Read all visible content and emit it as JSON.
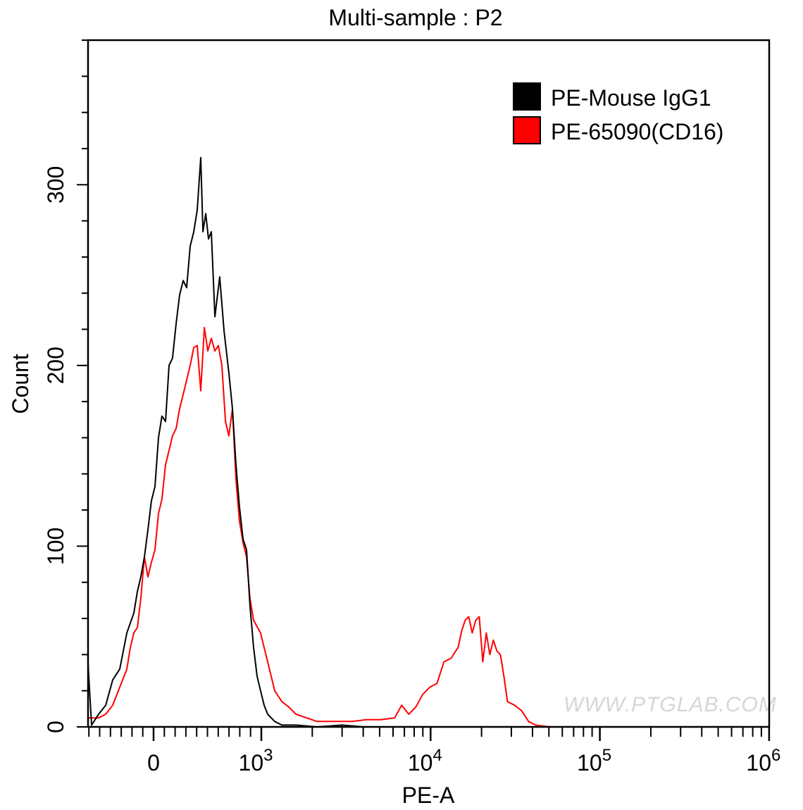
{
  "chart_data": {
    "type": "line",
    "title": "Multi-sample : P2",
    "xlabel": "PE-A",
    "ylabel": "Count",
    "xscale": "biexponential",
    "xlim": [
      -608,
      1000000
    ],
    "ylim": [
      0,
      380
    ],
    "x_ticks": [
      {
        "value": 0,
        "label": "0",
        "sup": ""
      },
      {
        "value": 1000,
        "label": "10",
        "sup": "3"
      },
      {
        "value": 10000,
        "label": "10",
        "sup": "4"
      },
      {
        "value": 100000,
        "label": "10",
        "sup": "5"
      },
      {
        "value": 1000000,
        "label": "10",
        "sup": "6"
      }
    ],
    "y_ticks": [
      {
        "value": 0,
        "label": "0"
      },
      {
        "value": 100,
        "label": "100"
      },
      {
        "value": 200,
        "label": "200"
      },
      {
        "value": 300,
        "label": "300"
      }
    ],
    "legend_position": "top-right",
    "watermark": "WWW.PTGLAB.COM",
    "series": [
      {
        "name": "PE-Mouse IgG1",
        "color": "#000000",
        "x": [
          -608,
          -575,
          -510,
          -444,
          -379,
          -314,
          -248,
          -183,
          -150,
          -118,
          -85,
          -52,
          -20,
          13,
          46,
          78,
          111,
          144,
          176,
          209,
          242,
          275,
          307,
          340,
          373,
          405,
          438,
          458,
          484,
          510,
          536,
          569,
          614,
          654,
          699,
          732,
          765,
          797,
          830,
          863,
          895,
          928,
          961,
          993,
          1039,
          1090,
          1200,
          1321,
          1600,
          2133,
          3000,
          4000
        ],
        "y": [
          35,
          1,
          7,
          12,
          26,
          32,
          52,
          63,
          75,
          83,
          94,
          109,
          125,
          133,
          160,
          172,
          169,
          200,
          204,
          223,
          239,
          247,
          243,
          266,
          274,
          286,
          315,
          274,
          284,
          270,
          274,
          227,
          249,
          219,
          196,
          176,
          145,
          122,
          104,
          98,
          67,
          44,
          28,
          20,
          12,
          7,
          3,
          1,
          1,
          0,
          1,
          0
        ]
      },
      {
        "name": "PE-65090(CD16)",
        "color": "#ff0000",
        "x": [
          -608,
          -510,
          -444,
          -379,
          -314,
          -248,
          -216,
          -183,
          -150,
          -118,
          -85,
          -52,
          -20,
          13,
          46,
          78,
          111,
          144,
          176,
          209,
          242,
          275,
          307,
          340,
          373,
          405,
          438,
          471,
          503,
          536,
          569,
          601,
          634,
          667,
          699,
          732,
          765,
          797,
          830,
          863,
          895,
          928,
          993,
          1090,
          1200,
          1321,
          1454,
          1600,
          2133,
          2844,
          3448,
          4178,
          5060,
          6133,
          6750,
          7430,
          8175,
          8995,
          9905,
          10900,
          12000,
          13210,
          14540,
          15250,
          16000,
          16790,
          17620,
          18480,
          19390,
          20340,
          21340,
          22390,
          23490,
          24640,
          25850,
          27120,
          28450,
          31310,
          34460,
          37930,
          41750,
          50580
        ],
        "y": [
          5,
          5,
          7,
          12,
          22,
          32,
          44,
          52,
          55,
          71,
          94,
          83,
          91,
          98,
          118,
          126,
          145,
          153,
          161,
          165,
          176,
          184,
          192,
          200,
          210,
          211,
          186,
          221,
          208,
          215,
          208,
          211,
          200,
          169,
          161,
          176,
          137,
          114,
          102,
          94,
          71,
          59,
          52,
          36,
          20,
          14,
          11,
          7,
          3,
          3,
          3,
          4,
          4,
          5,
          12,
          7,
          11,
          18,
          22,
          24,
          36,
          38,
          44,
          53,
          59,
          61,
          52,
          59,
          61,
          36,
          52,
          40,
          48,
          42,
          40,
          28,
          14,
          12,
          9,
          3,
          1,
          0
        ]
      }
    ]
  }
}
